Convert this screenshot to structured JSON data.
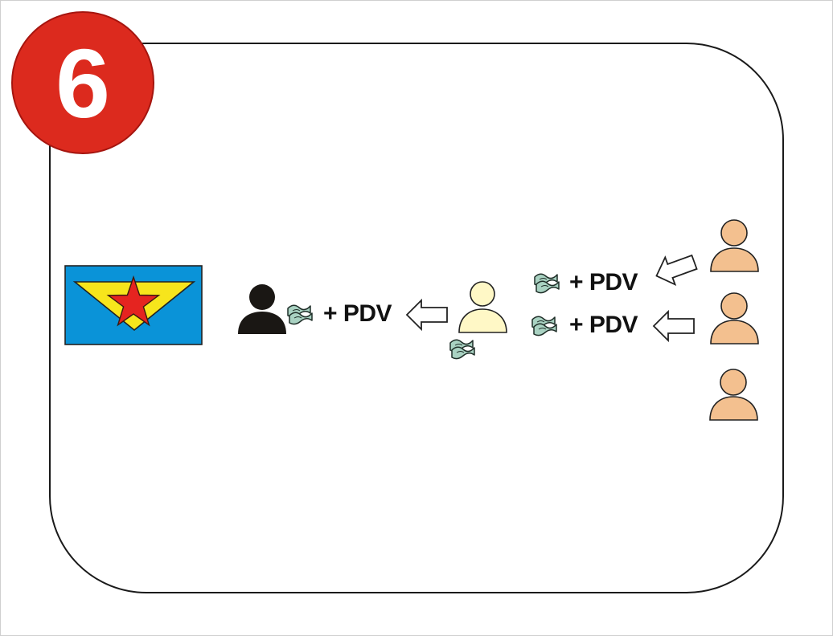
{
  "step": {
    "number": "6"
  },
  "flows": [
    {
      "label": "+ PDV"
    },
    {
      "label": "+ PDV"
    },
    {
      "label": "+ PDV"
    }
  ],
  "icons": [
    "state-emblem-flag-icon",
    "person-icon",
    "money-icon",
    "arrow-left-icon"
  ],
  "colors": {
    "step_badge": "#dc2a1e",
    "flag_blue": "#0a93d8",
    "flag_yellow": "#f7e51c",
    "star_red": "#e52420",
    "state_person": "#1a1714",
    "middle_person": "#fff8c6",
    "end_persons": "#f3c08f",
    "money": "#a9d2c2"
  }
}
